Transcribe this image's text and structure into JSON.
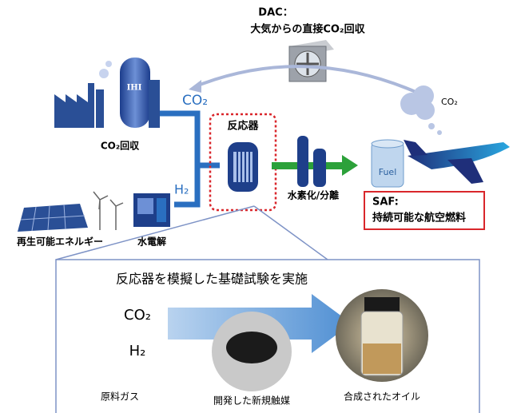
{
  "dac": {
    "title": "DAC：",
    "subtitle": "大気からの直接CO₂回収"
  },
  "plant": {
    "logo": "IHI",
    "label": "CO₂回収",
    "pipe_label": "CO₂"
  },
  "reactor": {
    "label": "反応器"
  },
  "separation": {
    "label": "水素化/分離"
  },
  "fuel": {
    "label": "Fuel"
  },
  "cloud": {
    "label": "CO₂"
  },
  "saf": {
    "title": "SAF:",
    "subtitle": "持続可能な航空燃料"
  },
  "energy": {
    "label": "再生可能エネルギー"
  },
  "electrolysis": {
    "label": "水電解",
    "pipe_label": "H₂"
  },
  "experiment": {
    "title": "反応器を模擬した基礎試験を実施",
    "gases": [
      "CO₂",
      "H₂"
    ],
    "captions": [
      "原料ガス",
      "開発した新規触媒",
      "合成されたオイル"
    ]
  }
}
